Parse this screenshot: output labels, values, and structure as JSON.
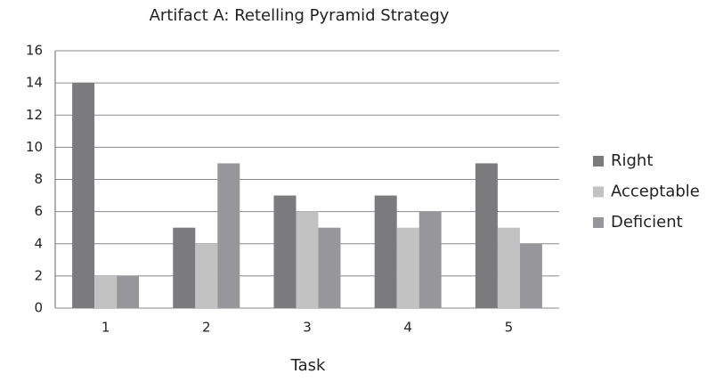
{
  "chart_data": {
    "type": "bar",
    "title": "Artifact A: Retelling Pyramid Strategy",
    "x_label": "Task",
    "categories": [
      "1",
      "2",
      "3",
      "4",
      "5"
    ],
    "series": [
      {
        "name": "Right",
        "color": "#7b7b7e",
        "values": [
          14,
          5,
          7,
          7,
          9
        ]
      },
      {
        "name": "Acceptable",
        "color": "#c2c2c2",
        "values": [
          2,
          4,
          6,
          5,
          5
        ]
      },
      {
        "name": "Deficient",
        "color": "#97979b",
        "values": [
          2,
          9,
          5,
          6,
          4
        ]
      }
    ],
    "ylim": [
      0,
      16
    ],
    "yticks": [
      0,
      2,
      4,
      6,
      8,
      10,
      12,
      14,
      16
    ],
    "grid": true,
    "legend": "right"
  }
}
